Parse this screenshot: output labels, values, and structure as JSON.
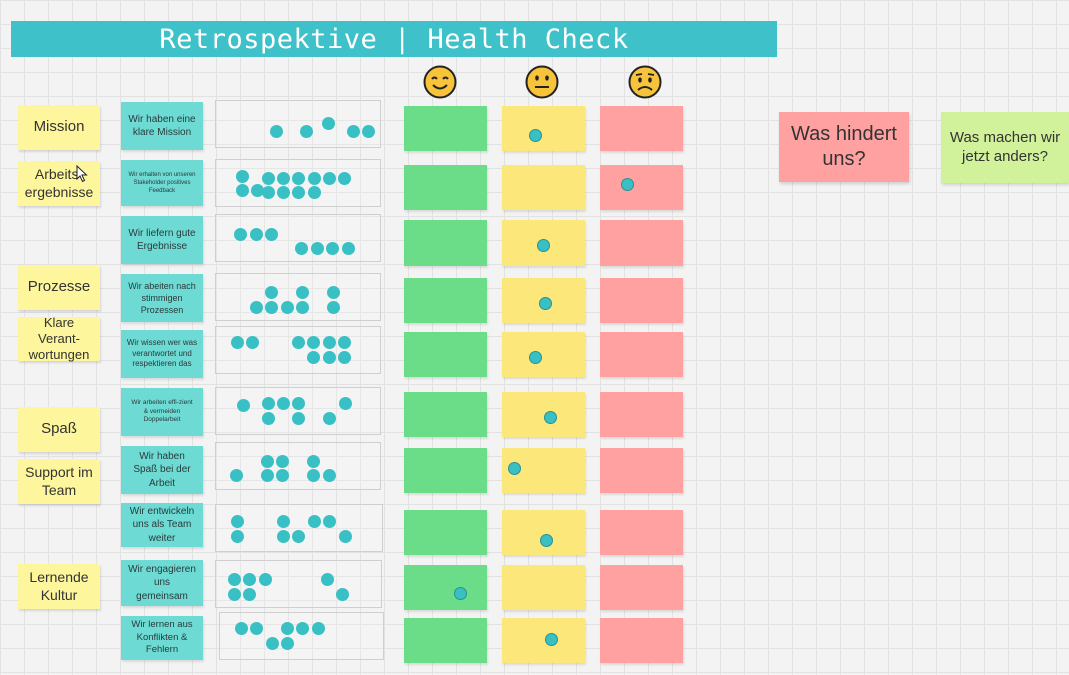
{
  "title": "Retrospektive | Health Check",
  "faces": [
    "smiling-face-icon",
    "neutral-face-icon",
    "worried-face-icon"
  ],
  "categories": [
    "Mission",
    "Arbeits-ergebnisse",
    "Prozesse",
    "Klare Verant-wortungen",
    "Spaß",
    "Support im Team",
    "Lernende Kultur"
  ],
  "statements": [
    "Wir haben eine klare Mission",
    "Wir erhalten von unseren Stakeholder positives Feedback",
    "Wir liefern gute Ergebnisse",
    "Wir abeiten nach stimmigen Prozessen",
    "Wir wissen wer was verantwortet und respektieren das",
    "Wir arbeiten effi-zient & vermeiden Doppelarbeit",
    "Wir haben Spaß bei der Arbeit",
    "Wir entwickeln uns als Team weiter",
    "Wir engagieren uns gemeinsam",
    "Wir lernen aus Konflikten & Fehlern"
  ],
  "vote_counts": [
    5,
    13,
    7,
    8,
    9,
    8,
    8,
    8,
    7,
    7
  ],
  "colors": {
    "banner": "#3fc1c9",
    "green": "#6bdc88",
    "yellow": "#fbe77a",
    "red": "#ffa1a1",
    "dot": "#39c0c4"
  },
  "right_notes": {
    "hindert": "Was hindert uns?",
    "anders": "Was machen wir jetzt anders?"
  }
}
